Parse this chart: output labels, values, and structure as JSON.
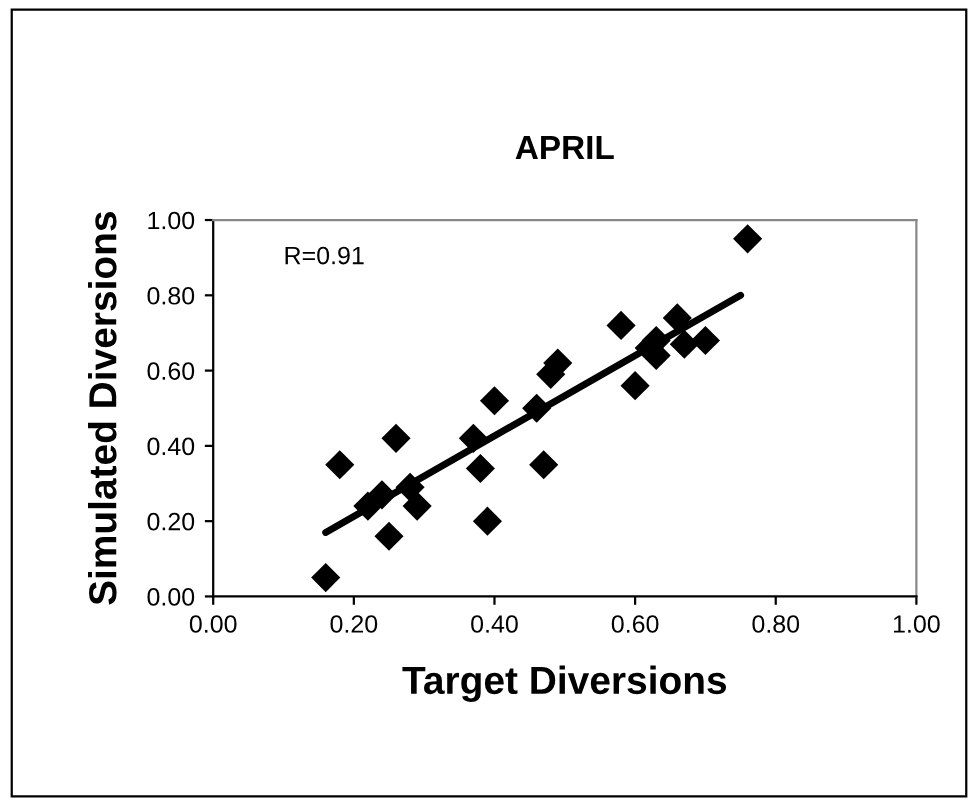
{
  "chart_data": {
    "type": "scatter",
    "title": "APRIL",
    "xlabel": "Target Diversions",
    "ylabel": "Simulated Diversions",
    "annotations": [
      "R=0.91"
    ],
    "series": [
      {
        "color": "#000000",
        "marker": "diamond",
        "x": [
          0.16,
          0.18,
          0.26,
          0.22,
          0.24,
          0.25,
          0.28,
          0.29,
          0.37,
          0.38,
          0.4,
          0.39,
          0.46,
          0.47,
          0.48,
          0.49,
          0.6,
          0.63,
          0.76,
          0.58,
          0.66,
          0.63,
          0.62,
          0.67,
          0.7
        ],
        "values": [
          0.05,
          0.35,
          0.42,
          0.24,
          0.27,
          0.16,
          0.29,
          0.24,
          0.42,
          0.34,
          0.52,
          0.2,
          0.5,
          0.35,
          0.59,
          0.62,
          0.56,
          0.64,
          0.95,
          0.72,
          0.74,
          0.68,
          0.66,
          0.67,
          0.68
        ]
      },
      {
        "type": "line",
        "color": "#000000",
        "x": [
          0.16,
          0.75
        ],
        "values": [
          0.17,
          0.8
        ]
      }
    ],
    "xlim": [
      0,
      1
    ],
    "ylim": [
      0,
      1
    ],
    "xticks": [
      {
        "value": 0,
        "label": "0.00"
      },
      {
        "value": 0.2,
        "label": "0.20"
      },
      {
        "value": 0.4,
        "label": "0.40"
      },
      {
        "value": 0.6,
        "label": "0.60"
      },
      {
        "value": 0.8,
        "label": "0.80"
      },
      {
        "value": 1,
        "label": "1.00"
      }
    ],
    "yticks": [
      {
        "value": 0,
        "label": "0.00"
      },
      {
        "value": 0.2,
        "label": "0.20"
      },
      {
        "value": 0.4,
        "label": "0.40"
      },
      {
        "value": 0.6,
        "label": "0.60"
      },
      {
        "value": 0.8,
        "label": "0.80"
      },
      {
        "value": 1,
        "label": "1.00"
      }
    ],
    "grid": false,
    "legend": false
  }
}
